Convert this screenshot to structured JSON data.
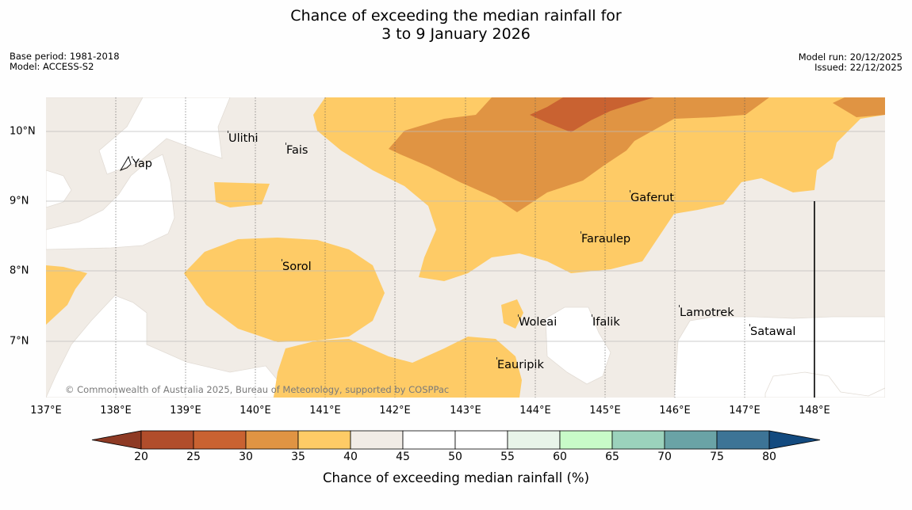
{
  "title": {
    "line1": "Chance of exceeding the median rainfall for",
    "line2": "3 to 9 January 2026"
  },
  "meta_left": {
    "base_period": "Base period: 1981-2018",
    "model": "Model: ACCESS-S2"
  },
  "meta_right": {
    "model_run": "Model run: 20/12/2025",
    "issued": "Issued: 22/12/2025"
  },
  "map": {
    "lon_labels": [
      "137°E",
      "138°E",
      "139°E",
      "140°E",
      "141°E",
      "142°E",
      "143°E",
      "144°E",
      "145°E",
      "146°E",
      "147°E",
      "148°E"
    ],
    "lat_labels": [
      "10°N",
      "9°N",
      "8°N",
      "7°N"
    ],
    "places": [
      "Ulithi",
      "Fais",
      "Yap",
      "Gaferut",
      "Faraulep",
      "Sorol",
      "Lamotrek",
      "Woleai",
      "Ifalik",
      "Satawal",
      "Eauripik"
    ],
    "copyright": "© Commonwealth of Australia 2025, Bureau of Meteorology, supported by COSPPac",
    "region_colors": {
      "pct_35_40": "#fecb66",
      "pct_30_35": "#e09443",
      "pct_25_30": "#c96231",
      "pct_40_45": "#f1ece6",
      "pct_45_55": "#ffffff"
    }
  },
  "colorbar": {
    "ticks": [
      "20",
      "25",
      "30",
      "35",
      "40",
      "45",
      "50",
      "55",
      "60",
      "65",
      "70",
      "75",
      "80"
    ],
    "label": "Chance of exceeding median rainfall (%)",
    "low_extend_color": "#8e3a24",
    "high_extend_color": "#134a7f",
    "bins": [
      "#b14d2b",
      "#c96231",
      "#e09443",
      "#fecb66",
      "#f1ece6",
      "#ffffff",
      "#ffffff",
      "#e8f4e9",
      "#c8fbc8",
      "#9bd2bc",
      "#6aa3a6",
      "#3d7496"
    ]
  }
}
